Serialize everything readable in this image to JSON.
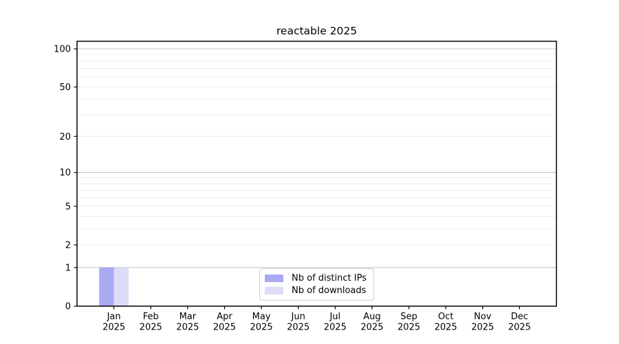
{
  "chart_data": {
    "type": "bar",
    "title": "reactable 2025",
    "categories": [
      "Jan",
      "Feb",
      "Mar",
      "Apr",
      "May",
      "Jun",
      "Jul",
      "Aug",
      "Sep",
      "Oct",
      "Nov",
      "Dec"
    ],
    "x_sublabel_year": "2025",
    "series": [
      {
        "name": "Nb of distinct IPs",
        "color": "#a9a9f4",
        "values": [
          1,
          0,
          0,
          0,
          0,
          0,
          0,
          0,
          0,
          0,
          0,
          0
        ]
      },
      {
        "name": "Nb of downloads",
        "color": "#dcdcf8",
        "values": [
          1,
          0,
          0,
          0,
          0,
          0,
          0,
          0,
          0,
          0,
          0,
          0
        ]
      }
    ],
    "yaxis": {
      "scale": "log1p",
      "ticks": [
        0,
        1,
        2,
        5,
        10,
        20,
        50,
        100
      ],
      "tick_labels": [
        "0",
        "1",
        "2",
        "5",
        "10",
        "20",
        "50",
        "100"
      ],
      "major_gridlines": [
        1,
        10,
        100
      ],
      "minor_gridlines": [
        2,
        3,
        4,
        5,
        6,
        7,
        8,
        9,
        20,
        30,
        40,
        50,
        60,
        70,
        80,
        90
      ],
      "range": [
        0,
        115
      ]
    },
    "legend": {
      "position": "bottom-center",
      "entries": [
        "Nb of distinct IPs",
        "Nb of downloads"
      ]
    },
    "colors": {
      "axis": "#000000",
      "grid_major": "#c6c6c6",
      "grid_minor": "#ececec",
      "background": "#ffffff"
    }
  }
}
